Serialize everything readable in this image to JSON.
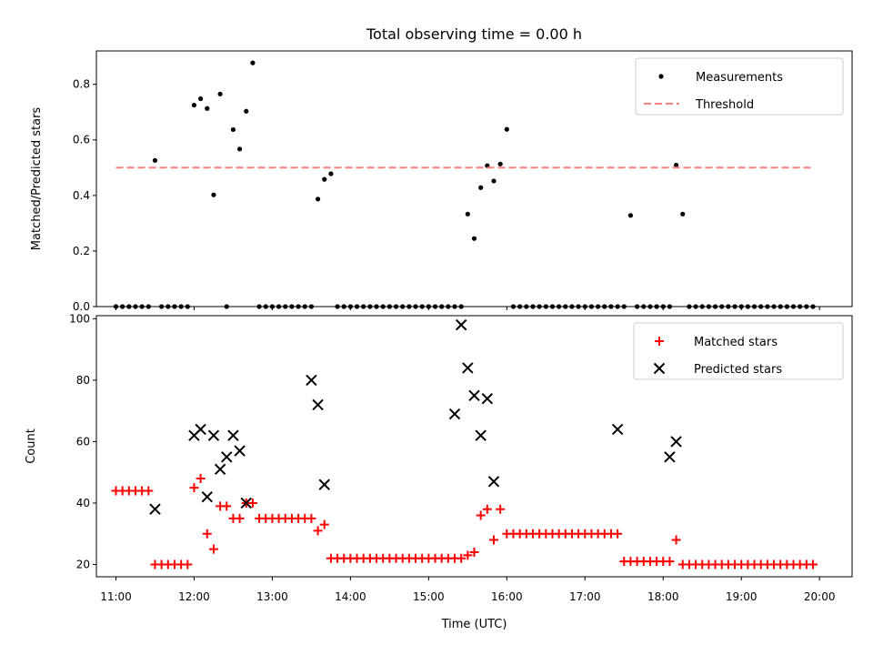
{
  "chart_data": {
    "title": "Total observing time = 0.00 h",
    "xlabel": "Time (UTC)",
    "xticks": [
      "11:00",
      "12:00",
      "13:00",
      "14:00",
      "15:00",
      "16:00",
      "17:00",
      "18:00",
      "19:00",
      "20:00"
    ],
    "xlim": [
      "10:45",
      "20:25"
    ],
    "panels": [
      {
        "type": "scatter",
        "ylabel": "Matched/Predicted stars",
        "ylim": [
          0,
          0.92
        ],
        "yticks": [
          "0.0",
          "0.2",
          "0.4",
          "0.6",
          "0.8"
        ],
        "legend_position": "top-right",
        "series": [
          {
            "name": "Measurements",
            "marker": "dot",
            "color": "#000000",
            "x": [
              "11:00",
              "11:05",
              "11:10",
              "11:15",
              "11:20",
              "11:25",
              "11:30",
              "11:35",
              "11:40",
              "11:45",
              "11:50",
              "11:55",
              "12:00",
              "12:05",
              "12:10",
              "12:15",
              "12:20",
              "12:25",
              "12:30",
              "12:35",
              "12:40",
              "12:45",
              "12:50",
              "12:55",
              "13:00",
              "13:05",
              "13:10",
              "13:15",
              "13:20",
              "13:25",
              "13:30",
              "13:35",
              "13:40",
              "13:45",
              "13:50",
              "13:55",
              "14:00",
              "14:05",
              "14:10",
              "14:15",
              "14:20",
              "14:25",
              "14:30",
              "14:35",
              "14:40",
              "14:45",
              "14:50",
              "14:55",
              "15:00",
              "15:05",
              "15:10",
              "15:15",
              "15:20",
              "15:25",
              "15:30",
              "15:35",
              "15:40",
              "15:45",
              "15:50",
              "15:55",
              "16:00",
              "16:05",
              "16:10",
              "16:15",
              "16:20",
              "16:25",
              "16:30",
              "16:35",
              "16:40",
              "16:45",
              "16:50",
              "16:55",
              "17:00",
              "17:05",
              "17:10",
              "17:15",
              "17:20",
              "17:25",
              "17:30",
              "17:35",
              "17:40",
              "17:45",
              "17:50",
              "17:55",
              "18:00",
              "18:05",
              "18:10",
              "18:15",
              "18:20",
              "18:25",
              "18:30",
              "18:35",
              "18:40",
              "18:45",
              "18:50",
              "18:55",
              "19:00",
              "19:05",
              "19:10",
              "19:15",
              "19:20",
              "19:25",
              "19:30",
              "19:35",
              "19:40",
              "19:45",
              "19:50",
              "19:55"
            ],
            "y": [
              0,
              0,
              0,
              0,
              0,
              0,
              0.526,
              0,
              0,
              0,
              0,
              0,
              0.725,
              0.748,
              0.713,
              0.402,
              0.765,
              0,
              0.637,
              0.567,
              0.703,
              0.877,
              0,
              0,
              0,
              0,
              0,
              0,
              0,
              0,
              0,
              0.387,
              0.458,
              0.478,
              0,
              0,
              0,
              0,
              0,
              0,
              0,
              0,
              0,
              0,
              0,
              0,
              0,
              0,
              0,
              0,
              0,
              0,
              0,
              0,
              0.333,
              0.245,
              0.428,
              0.507,
              0.452,
              0.513,
              0.638,
              0,
              0,
              0,
              0,
              0,
              0,
              0,
              0,
              0,
              0,
              0,
              0,
              0,
              0,
              0,
              0,
              0,
              0,
              0.328,
              0,
              0,
              0,
              0,
              0,
              0,
              0.509,
              0.333,
              0,
              0,
              0,
              0,
              0,
              0,
              0,
              0,
              0,
              0,
              0,
              0,
              0,
              0,
              0,
              0,
              0,
              0,
              0,
              0
            ]
          },
          {
            "name": "Threshold",
            "line_style": "dashed",
            "color": "#ff7f7f",
            "x": [
              "11:00",
              "19:55"
            ],
            "y": [
              0.5,
              0.5
            ]
          }
        ]
      },
      {
        "type": "scatter",
        "ylabel": "Count",
        "ylim": [
          16,
          101
        ],
        "yticks": [
          "20",
          "40",
          "60",
          "80",
          "100"
        ],
        "legend_position": "top-right",
        "series": [
          {
            "name": "Matched stars",
            "marker": "plus",
            "color": "#ff0000",
            "x": [
              "11:00",
              "11:05",
              "11:10",
              "11:15",
              "11:20",
              "11:25",
              "11:30",
              "11:35",
              "11:40",
              "11:45",
              "11:50",
              "11:55",
              "12:00",
              "12:05",
              "12:10",
              "12:15",
              "12:20",
              "12:25",
              "12:30",
              "12:35",
              "12:40",
              "12:45",
              "12:50",
              "12:55",
              "13:00",
              "13:05",
              "13:10",
              "13:15",
              "13:20",
              "13:25",
              "13:30",
              "13:35",
              "13:40",
              "13:45",
              "13:50",
              "13:55",
              "14:00",
              "14:05",
              "14:10",
              "14:15",
              "14:20",
              "14:25",
              "14:30",
              "14:35",
              "14:40",
              "14:45",
              "14:50",
              "14:55",
              "15:00",
              "15:05",
              "15:10",
              "15:15",
              "15:20",
              "15:25",
              "15:30",
              "15:35",
              "15:40",
              "15:45",
              "15:50",
              "15:55",
              "16:00",
              "16:05",
              "16:10",
              "16:15",
              "16:20",
              "16:25",
              "16:30",
              "16:35",
              "16:40",
              "16:45",
              "16:50",
              "16:55",
              "17:00",
              "17:05",
              "17:10",
              "17:15",
              "17:20",
              "17:25",
              "17:30",
              "17:35",
              "17:40",
              "17:45",
              "17:50",
              "17:55",
              "18:00",
              "18:05",
              "18:10",
              "18:15",
              "18:20",
              "18:25",
              "18:30",
              "18:35",
              "18:40",
              "18:45",
              "18:50",
              "18:55",
              "19:00",
              "19:05",
              "19:10",
              "19:15",
              "19:20",
              "19:25",
              "19:30",
              "19:35",
              "19:40",
              "19:45",
              "19:50",
              "19:55"
            ],
            "y": [
              44,
              44,
              44,
              44,
              44,
              44,
              20,
              20,
              20,
              20,
              20,
              20,
              45,
              48,
              30,
              25,
              39,
              39,
              35,
              35,
              40,
              40,
              35,
              35,
              35,
              35,
              35,
              35,
              35,
              35,
              35,
              31,
              33,
              22,
              22,
              22,
              22,
              22,
              22,
              22,
              22,
              22,
              22,
              22,
              22,
              22,
              22,
              22,
              22,
              22,
              22,
              22,
              22,
              22,
              23,
              24,
              36,
              38,
              28,
              38,
              30,
              30,
              30,
              30,
              30,
              30,
              30,
              30,
              30,
              30,
              30,
              30,
              30,
              30,
              30,
              30,
              30,
              30,
              21,
              21,
              21,
              21,
              21,
              21,
              21,
              21,
              28,
              20,
              20,
              20,
              20,
              20,
              20,
              20,
              20,
              20,
              20,
              20,
              20,
              20,
              20,
              20,
              20,
              20,
              20,
              20,
              20,
              20
            ]
          },
          {
            "name": "Predicted stars",
            "marker": "x",
            "color": "#000000",
            "x": [
              "11:30",
              "12:00",
              "12:05",
              "12:10",
              "12:15",
              "12:20",
              "12:25",
              "12:30",
              "12:35",
              "12:40",
              "13:30",
              "13:35",
              "13:40",
              "15:20",
              "15:25",
              "15:30",
              "15:35",
              "15:40",
              "15:45",
              "15:50",
              "17:25",
              "18:05",
              "18:10"
            ],
            "y": [
              38,
              62,
              64,
              42,
              62,
              51,
              55,
              62,
              57,
              40,
              80,
              72,
              46,
              69,
              98,
              84,
              75,
              62,
              74,
              47,
              64,
              55,
              60
            ]
          }
        ]
      }
    ]
  }
}
